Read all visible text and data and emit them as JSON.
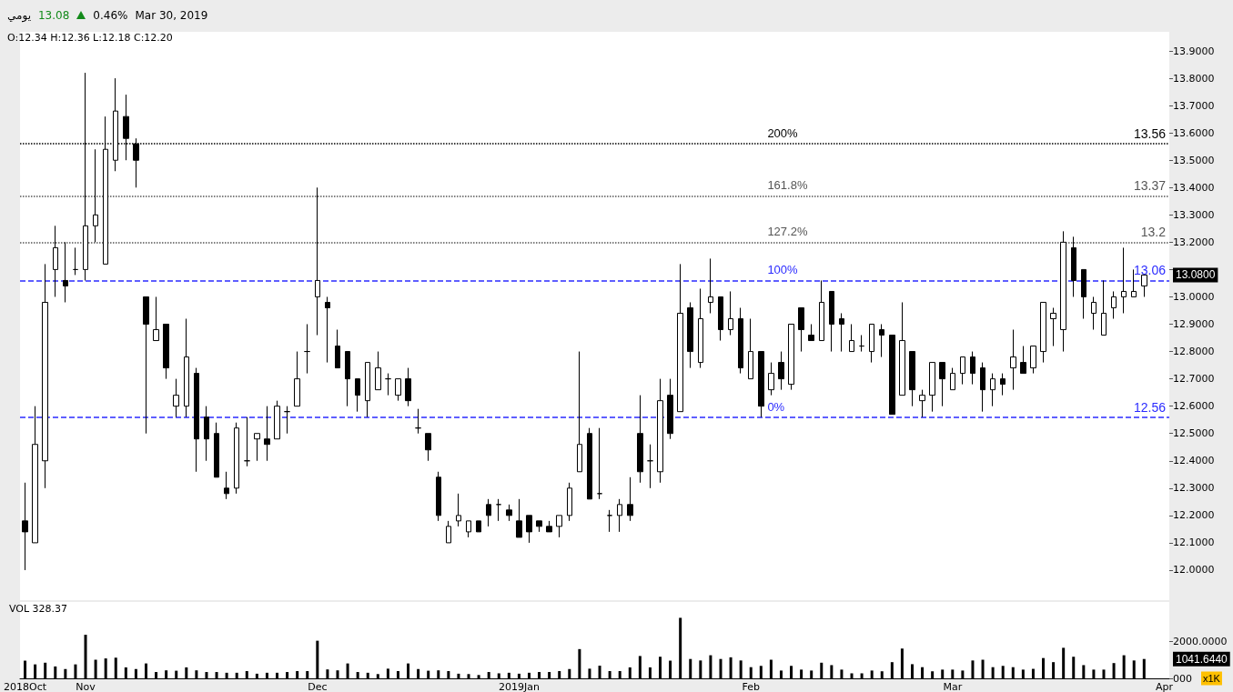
{
  "chart_data": [
    {
      "type": "candlestick",
      "categories": [
        null,
        null,
        null,
        null,
        null,
        null,
        null,
        null,
        null,
        null,
        null,
        null,
        null,
        null,
        null,
        null,
        null,
        null,
        null,
        null,
        null,
        null,
        null,
        null,
        null,
        null,
        null,
        null,
        null,
        null,
        null,
        null,
        null,
        null,
        null,
        null,
        null,
        null,
        null,
        null,
        null,
        null,
        null,
        null,
        null,
        null,
        null,
        null,
        null,
        null,
        null,
        null,
        null,
        null,
        null,
        null,
        null,
        null,
        null,
        null,
        null,
        null,
        null,
        null,
        null,
        null,
        null,
        null,
        null,
        null,
        null,
        null,
        null,
        null,
        null,
        null,
        null,
        null,
        null,
        null,
        null,
        null,
        null,
        null,
        null,
        null,
        null,
        null,
        null,
        null,
        null,
        null,
        null,
        null,
        null,
        null,
        null,
        null,
        null,
        null,
        null,
        null,
        null,
        null,
        null,
        null,
        null,
        null,
        null,
        null,
        null,
        null,
        null,
        null
      ],
      "ohlc": [
        [
          12.18,
          12.32,
          12.0,
          12.14
        ],
        [
          12.1,
          12.6,
          12.1,
          12.46
        ],
        [
          12.4,
          13.12,
          12.3,
          12.98
        ],
        [
          13.1,
          13.26,
          13.0,
          13.18
        ],
        [
          13.06,
          13.2,
          12.98,
          13.04
        ],
        [
          13.1,
          13.18,
          13.08,
          13.1
        ],
        [
          13.1,
          13.82,
          13.06,
          13.26
        ],
        [
          13.26,
          13.54,
          13.2,
          13.3
        ],
        [
          13.12,
          13.66,
          13.12,
          13.54
        ],
        [
          13.5,
          13.8,
          13.46,
          13.68
        ],
        [
          13.66,
          13.74,
          13.5,
          13.58
        ],
        [
          13.56,
          13.58,
          13.4,
          13.5
        ],
        [
          13.0,
          13.0,
          12.5,
          12.9
        ],
        [
          12.84,
          13.0,
          12.84,
          12.88
        ],
        [
          12.9,
          12.9,
          12.7,
          12.74
        ],
        [
          12.6,
          12.7,
          12.56,
          12.64
        ],
        [
          12.6,
          12.92,
          12.56,
          12.78
        ],
        [
          12.72,
          12.74,
          12.36,
          12.48
        ],
        [
          12.56,
          12.6,
          12.4,
          12.48
        ],
        [
          12.5,
          12.54,
          12.34,
          12.34
        ],
        [
          12.3,
          12.36,
          12.26,
          12.28
        ],
        [
          12.3,
          12.54,
          12.28,
          12.52
        ],
        [
          12.4,
          12.56,
          12.38,
          12.4
        ],
        [
          12.48,
          12.5,
          12.4,
          12.5
        ],
        [
          12.48,
          12.6,
          12.4,
          12.46
        ],
        [
          12.48,
          12.62,
          12.48,
          12.6
        ],
        [
          12.58,
          12.6,
          12.5,
          12.58
        ],
        [
          12.6,
          12.8,
          12.6,
          12.7
        ],
        [
          12.8,
          12.9,
          12.72,
          12.8
        ],
        [
          13.0,
          13.4,
          12.86,
          13.06
        ],
        [
          12.98,
          13.0,
          12.76,
          12.96
        ],
        [
          12.82,
          12.88,
          12.74,
          12.74
        ],
        [
          12.8,
          12.8,
          12.6,
          12.7
        ],
        [
          12.7,
          12.7,
          12.58,
          12.64
        ],
        [
          12.62,
          12.76,
          12.56,
          12.76
        ],
        [
          12.66,
          12.8,
          12.66,
          12.74
        ],
        [
          12.7,
          12.72,
          12.64,
          12.7
        ],
        [
          12.64,
          12.7,
          12.62,
          12.7
        ],
        [
          12.7,
          12.74,
          12.6,
          12.62
        ],
        [
          12.52,
          12.59,
          12.5,
          12.52
        ],
        [
          12.5,
          12.5,
          12.4,
          12.44
        ],
        [
          12.34,
          12.36,
          12.18,
          12.2
        ],
        [
          12.1,
          12.18,
          12.1,
          12.16
        ],
        [
          12.18,
          12.28,
          12.16,
          12.2
        ],
        [
          12.14,
          12.18,
          12.12,
          12.18
        ],
        [
          12.18,
          12.18,
          12.14,
          12.14
        ],
        [
          12.24,
          12.26,
          12.16,
          12.2
        ],
        [
          12.24,
          12.26,
          12.18,
          12.24
        ],
        [
          12.22,
          12.24,
          12.18,
          12.2
        ],
        [
          12.18,
          12.26,
          12.12,
          12.12
        ],
        [
          12.2,
          12.2,
          12.1,
          12.14
        ],
        [
          12.18,
          12.18,
          12.14,
          12.16
        ],
        [
          12.16,
          12.18,
          12.14,
          12.14
        ],
        [
          12.16,
          12.2,
          12.12,
          12.2
        ],
        [
          12.2,
          12.32,
          12.18,
          12.3
        ],
        [
          12.36,
          12.8,
          12.36,
          12.46
        ],
        [
          12.5,
          12.52,
          12.26,
          12.26
        ],
        [
          12.28,
          12.52,
          12.26,
          12.28
        ],
        [
          12.2,
          12.22,
          12.14,
          12.2
        ],
        [
          12.2,
          12.26,
          12.14,
          12.24
        ],
        [
          12.24,
          12.34,
          12.18,
          12.2
        ],
        [
          12.5,
          12.64,
          12.32,
          12.36
        ],
        [
          12.4,
          12.46,
          12.3,
          12.4
        ],
        [
          12.36,
          12.7,
          12.32,
          12.62
        ],
        [
          12.64,
          12.7,
          12.48,
          12.5
        ],
        [
          12.58,
          13.12,
          12.58,
          12.94
        ],
        [
          12.96,
          12.98,
          12.74,
          12.8
        ],
        [
          12.76,
          13.03,
          12.74,
          12.92
        ],
        [
          12.98,
          13.14,
          12.94,
          13.0
        ],
        [
          13.0,
          13.0,
          12.84,
          12.88
        ],
        [
          12.88,
          13.02,
          12.86,
          12.92
        ],
        [
          12.92,
          12.96,
          12.72,
          12.74
        ],
        [
          12.7,
          12.92,
          12.7,
          12.8
        ],
        [
          12.8,
          12.8,
          12.56,
          12.6
        ],
        [
          12.66,
          12.76,
          12.64,
          12.72
        ],
        [
          12.76,
          12.8,
          12.66,
          12.7
        ],
        [
          12.68,
          12.9,
          12.66,
          12.9
        ],
        [
          12.96,
          12.96,
          12.8,
          12.88
        ],
        [
          12.86,
          12.9,
          12.84,
          12.84
        ],
        [
          12.84,
          13.06,
          12.84,
          12.98
        ],
        [
          13.02,
          13.02,
          12.8,
          12.9
        ],
        [
          12.92,
          12.94,
          12.8,
          12.9
        ],
        [
          12.8,
          12.9,
          12.8,
          12.84
        ],
        [
          12.82,
          12.86,
          12.8,
          12.82
        ],
        [
          12.8,
          12.9,
          12.76,
          12.9
        ],
        [
          12.88,
          12.9,
          12.78,
          12.86
        ],
        [
          12.86,
          12.86,
          12.57,
          12.57
        ],
        [
          12.64,
          12.98,
          12.64,
          12.84
        ],
        [
          12.8,
          12.8,
          12.6,
          12.66
        ],
        [
          12.62,
          12.66,
          12.56,
          12.64
        ],
        [
          12.64,
          12.76,
          12.58,
          12.76
        ],
        [
          12.76,
          12.76,
          12.6,
          12.7
        ],
        [
          12.66,
          12.74,
          12.66,
          12.72
        ],
        [
          12.72,
          12.78,
          12.68,
          12.78
        ],
        [
          12.78,
          12.8,
          12.68,
          12.72
        ],
        [
          12.74,
          12.76,
          12.58,
          12.66
        ],
        [
          12.66,
          12.72,
          12.6,
          12.7
        ],
        [
          12.7,
          12.72,
          12.64,
          12.68
        ],
        [
          12.74,
          12.88,
          12.66,
          12.78
        ],
        [
          12.76,
          12.82,
          12.72,
          12.72
        ],
        [
          12.74,
          12.82,
          12.72,
          12.82
        ],
        [
          12.8,
          12.98,
          12.76,
          12.98
        ],
        [
          12.92,
          12.96,
          12.82,
          12.94
        ],
        [
          12.88,
          13.24,
          12.8,
          13.2
        ],
        [
          13.18,
          13.22,
          13.0,
          13.06
        ],
        [
          13.1,
          13.1,
          12.92,
          13.0
        ],
        [
          12.94,
          13.0,
          12.88,
          12.98
        ],
        [
          12.86,
          13.06,
          12.86,
          12.94
        ],
        [
          12.96,
          13.02,
          12.92,
          13.0
        ],
        [
          13.0,
          13.18,
          12.94,
          13.02
        ],
        [
          13.0,
          13.1,
          13.0,
          13.02
        ],
        [
          13.04,
          13.08,
          13.0,
          13.08
        ],
        null,
        null
      ],
      "ylim": [
        11.89,
        13.97
      ],
      "yticks": [
        {
          "value": 12,
          "label": "12.0000"
        },
        {
          "value": 12.1,
          "label": "12.1000"
        },
        {
          "value": 12.2,
          "label": "12.2000"
        },
        {
          "value": 12.3,
          "label": "12.3000"
        },
        {
          "value": 12.4,
          "label": "12.4000"
        },
        {
          "value": 12.5,
          "label": "12.5000"
        },
        {
          "value": 12.6,
          "label": "12.6000"
        },
        {
          "value": 12.7,
          "label": "12.7000"
        },
        {
          "value": 12.8,
          "label": "12.8000"
        },
        {
          "value": 12.9,
          "label": "12.9000"
        },
        {
          "value": 13,
          "label": "13.0000"
        },
        {
          "value": 13.1,
          "label": null
        },
        {
          "value": 13.2,
          "label": "13.2000"
        },
        {
          "value": 13.3,
          "label": "13.3000"
        },
        {
          "value": 13.4,
          "label": "13.4000"
        },
        {
          "value": 13.5,
          "label": "13.5000"
        },
        {
          "value": 13.6,
          "label": "13.6000"
        },
        {
          "value": 13.7,
          "label": "13.7000"
        },
        {
          "value": 13.8,
          "label": "13.8000"
        },
        {
          "value": 13.9,
          "label": "13.9000"
        }
      ],
      "tick_labels": "y",
      "ref_lines": [
        {
          "axis": "y",
          "value": 13.56,
          "label": "13.56",
          "color": "#000000",
          "line_style": "dotted"
        },
        {
          "axis": "y",
          "value": 13.37,
          "label": "13.37",
          "color": "#555555",
          "line_style": "dotted"
        },
        {
          "axis": "y",
          "value": 13.2,
          "label": "13.2",
          "color": "#555555",
          "line_style": "dotted"
        },
        {
          "axis": "y",
          "value": 13.06,
          "label": "13.06",
          "color": "#2b2bff",
          "line_style": "dashed"
        },
        {
          "axis": "y",
          "value": 12.56,
          "label": "12.56",
          "color": "#2b2bff",
          "line_style": "dashed"
        }
      ],
      "annotations": [
        "يومي",
        "13.08",
        "0.46%",
        "Mar 30, 2019",
        "O:12.34 H:12.36 L:12.18 C:12.20",
        "13.0800",
        "200%",
        "161.8%",
        "127.2%",
        "100%",
        "0%"
      ]
    },
    {
      "type": "bar",
      "categories": [
        "2018Oct",
        null,
        null,
        null,
        null,
        null,
        "Nov",
        null,
        null,
        null,
        null,
        null,
        null,
        null,
        null,
        null,
        null,
        null,
        null,
        null,
        null,
        null,
        null,
        null,
        null,
        null,
        null,
        null,
        null,
        "Dec",
        null,
        null,
        null,
        null,
        null,
        null,
        null,
        null,
        null,
        null,
        null,
        null,
        null,
        null,
        null,
        null,
        null,
        null,
        null,
        "2019Jan",
        null,
        null,
        null,
        null,
        null,
        null,
        null,
        null,
        null,
        null,
        null,
        null,
        null,
        null,
        null,
        null,
        null,
        null,
        null,
        null,
        null,
        null,
        "Feb",
        null,
        null,
        null,
        null,
        null,
        null,
        null,
        null,
        null,
        null,
        null,
        null,
        null,
        null,
        null,
        null,
        null,
        null,
        null,
        "Mar",
        null,
        null,
        null,
        null,
        null,
        null,
        null,
        null,
        null,
        null,
        null,
        null,
        null,
        null,
        null,
        null,
        null,
        null,
        null,
        null,
        "Apr"
      ],
      "values": [
        950,
        750,
        840,
        640,
        500,
        750,
        2340,
        1000,
        1070,
        1110,
        590,
        500,
        800,
        340,
        430,
        410,
        590,
        430,
        340,
        340,
        300,
        300,
        390,
        250,
        300,
        300,
        340,
        390,
        390,
        2020,
        480,
        430,
        800,
        340,
        300,
        230,
        520,
        390,
        800,
        500,
        410,
        430,
        390,
        250,
        230,
        180,
        340,
        270,
        300,
        250,
        300,
        340,
        340,
        390,
        500,
        1570,
        520,
        680,
        390,
        390,
        590,
        1200,
        590,
        1160,
        950,
        3250,
        1040,
        960,
        1240,
        1040,
        1130,
        960,
        600,
        670,
        1000,
        420,
        670,
        470,
        420,
        840,
        710,
        470,
        270,
        270,
        420,
        380,
        870,
        1600,
        760,
        600,
        380,
        470,
        470,
        420,
        960,
        1000,
        600,
        670,
        600,
        470,
        510,
        1090,
        870,
        1640,
        1160,
        710,
        470,
        470,
        820,
        1240,
        960,
        1040,
        null,
        null
      ],
      "color": "#000000",
      "ylim": [
        0,
        4100
      ],
      "yticks": [
        {
          "value": 0,
          "label": "000"
        },
        {
          "value": 2000,
          "label": "2000.0000"
        }
      ],
      "annotations": [
        "VOL 328.37",
        "x1K",
        "1041.6440"
      ]
    }
  ]
}
